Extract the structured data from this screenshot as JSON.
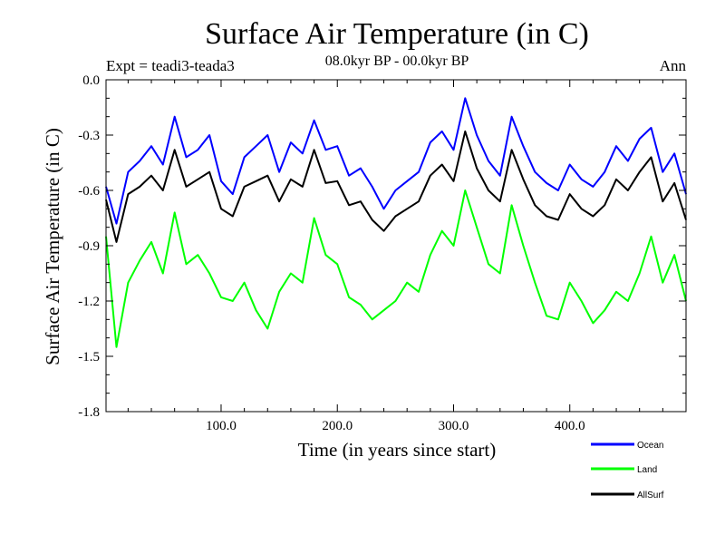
{
  "colors": {
    "ocean": "#0000ff",
    "land": "#00ff00",
    "allsurf": "#000000",
    "axis": "#000000"
  },
  "chart_data": {
    "type": "line",
    "title": "Surface Air Temperature (in C)",
    "subtitle": "08.0kyr BP - 00.0kyr BP",
    "expt_label": "Expt = teadi3-teada3",
    "season_label": "Ann",
    "xlabel": "Time (in years since start)",
    "ylabel": "Surface Air Temperature (in C)",
    "xlim": [
      1,
      500
    ],
    "ylim": [
      -1.8,
      0.0
    ],
    "xticks": [
      100,
      200,
      300,
      400
    ],
    "xtick_labels": [
      "100.0",
      "200.0",
      "300.0",
      "400.0"
    ],
    "yticks": [
      0.0,
      -0.3,
      -0.6,
      -0.9,
      -1.2,
      -1.5,
      -1.8
    ],
    "ytick_labels": [
      "0.0",
      "-0.3",
      "-0.6",
      "-0.9",
      "-1.2",
      "-1.5",
      "-1.8"
    ],
    "legend_position": "bottom-right, outside plot",
    "series": [
      {
        "name": "Ocean",
        "x": [
          1,
          10,
          20,
          30,
          40,
          50,
          60,
          70,
          80,
          90,
          100,
          110,
          120,
          130,
          140,
          150,
          160,
          170,
          180,
          190,
          200,
          210,
          220,
          230,
          240,
          250,
          260,
          270,
          280,
          290,
          300,
          310,
          320,
          330,
          340,
          350,
          360,
          370,
          380,
          390,
          400,
          410,
          420,
          430,
          440,
          450,
          460,
          470,
          480,
          490,
          500
        ],
        "values": [
          -0.58,
          -0.78,
          -0.5,
          -0.44,
          -0.36,
          -0.46,
          -0.2,
          -0.42,
          -0.38,
          -0.3,
          -0.55,
          -0.62,
          -0.42,
          -0.36,
          -0.3,
          -0.5,
          -0.34,
          -0.4,
          -0.22,
          -0.38,
          -0.36,
          -0.52,
          -0.48,
          -0.58,
          -0.7,
          -0.6,
          -0.55,
          -0.5,
          -0.34,
          -0.28,
          -0.38,
          -0.1,
          -0.3,
          -0.44,
          -0.52,
          -0.2,
          -0.36,
          -0.5,
          -0.56,
          -0.6,
          -0.46,
          -0.54,
          -0.58,
          -0.5,
          -0.36,
          -0.44,
          -0.32,
          -0.26,
          -0.5,
          -0.4,
          -0.62
        ]
      },
      {
        "name": "Land",
        "x": [
          1,
          10,
          20,
          30,
          40,
          50,
          60,
          70,
          80,
          90,
          100,
          110,
          120,
          130,
          140,
          150,
          160,
          170,
          180,
          190,
          200,
          210,
          220,
          230,
          240,
          250,
          260,
          270,
          280,
          290,
          300,
          310,
          320,
          330,
          340,
          350,
          360,
          370,
          380,
          390,
          400,
          410,
          420,
          430,
          440,
          450,
          460,
          470,
          480,
          490,
          500
        ],
        "values": [
          -0.85,
          -1.45,
          -1.1,
          -0.98,
          -0.88,
          -1.05,
          -0.72,
          -1.0,
          -0.95,
          -1.05,
          -1.18,
          -1.2,
          -1.1,
          -1.25,
          -1.35,
          -1.15,
          -1.05,
          -1.1,
          -0.75,
          -0.95,
          -1.0,
          -1.18,
          -1.22,
          -1.3,
          -1.25,
          -1.2,
          -1.1,
          -1.15,
          -0.95,
          -0.82,
          -0.9,
          -0.6,
          -0.8,
          -1.0,
          -1.05,
          -0.68,
          -0.9,
          -1.1,
          -1.28,
          -1.3,
          -1.1,
          -1.2,
          -1.32,
          -1.25,
          -1.15,
          -1.2,
          -1.05,
          -0.85,
          -1.1,
          -0.95,
          -1.2
        ]
      },
      {
        "name": "AllSurf",
        "x": [
          1,
          10,
          20,
          30,
          40,
          50,
          60,
          70,
          80,
          90,
          100,
          110,
          120,
          130,
          140,
          150,
          160,
          170,
          180,
          190,
          200,
          210,
          220,
          230,
          240,
          250,
          260,
          270,
          280,
          290,
          300,
          310,
          320,
          330,
          340,
          350,
          360,
          370,
          380,
          390,
          400,
          410,
          420,
          430,
          440,
          450,
          460,
          470,
          480,
          490,
          500
        ],
        "values": [
          -0.65,
          -0.88,
          -0.62,
          -0.58,
          -0.52,
          -0.6,
          -0.38,
          -0.58,
          -0.54,
          -0.5,
          -0.7,
          -0.74,
          -0.58,
          -0.55,
          -0.52,
          -0.66,
          -0.54,
          -0.58,
          -0.38,
          -0.56,
          -0.55,
          -0.68,
          -0.66,
          -0.76,
          -0.82,
          -0.74,
          -0.7,
          -0.66,
          -0.52,
          -0.46,
          -0.55,
          -0.28,
          -0.48,
          -0.6,
          -0.66,
          -0.38,
          -0.54,
          -0.68,
          -0.74,
          -0.76,
          -0.62,
          -0.7,
          -0.74,
          -0.68,
          -0.54,
          -0.6,
          -0.5,
          -0.42,
          -0.66,
          -0.56,
          -0.76
        ]
      }
    ]
  }
}
